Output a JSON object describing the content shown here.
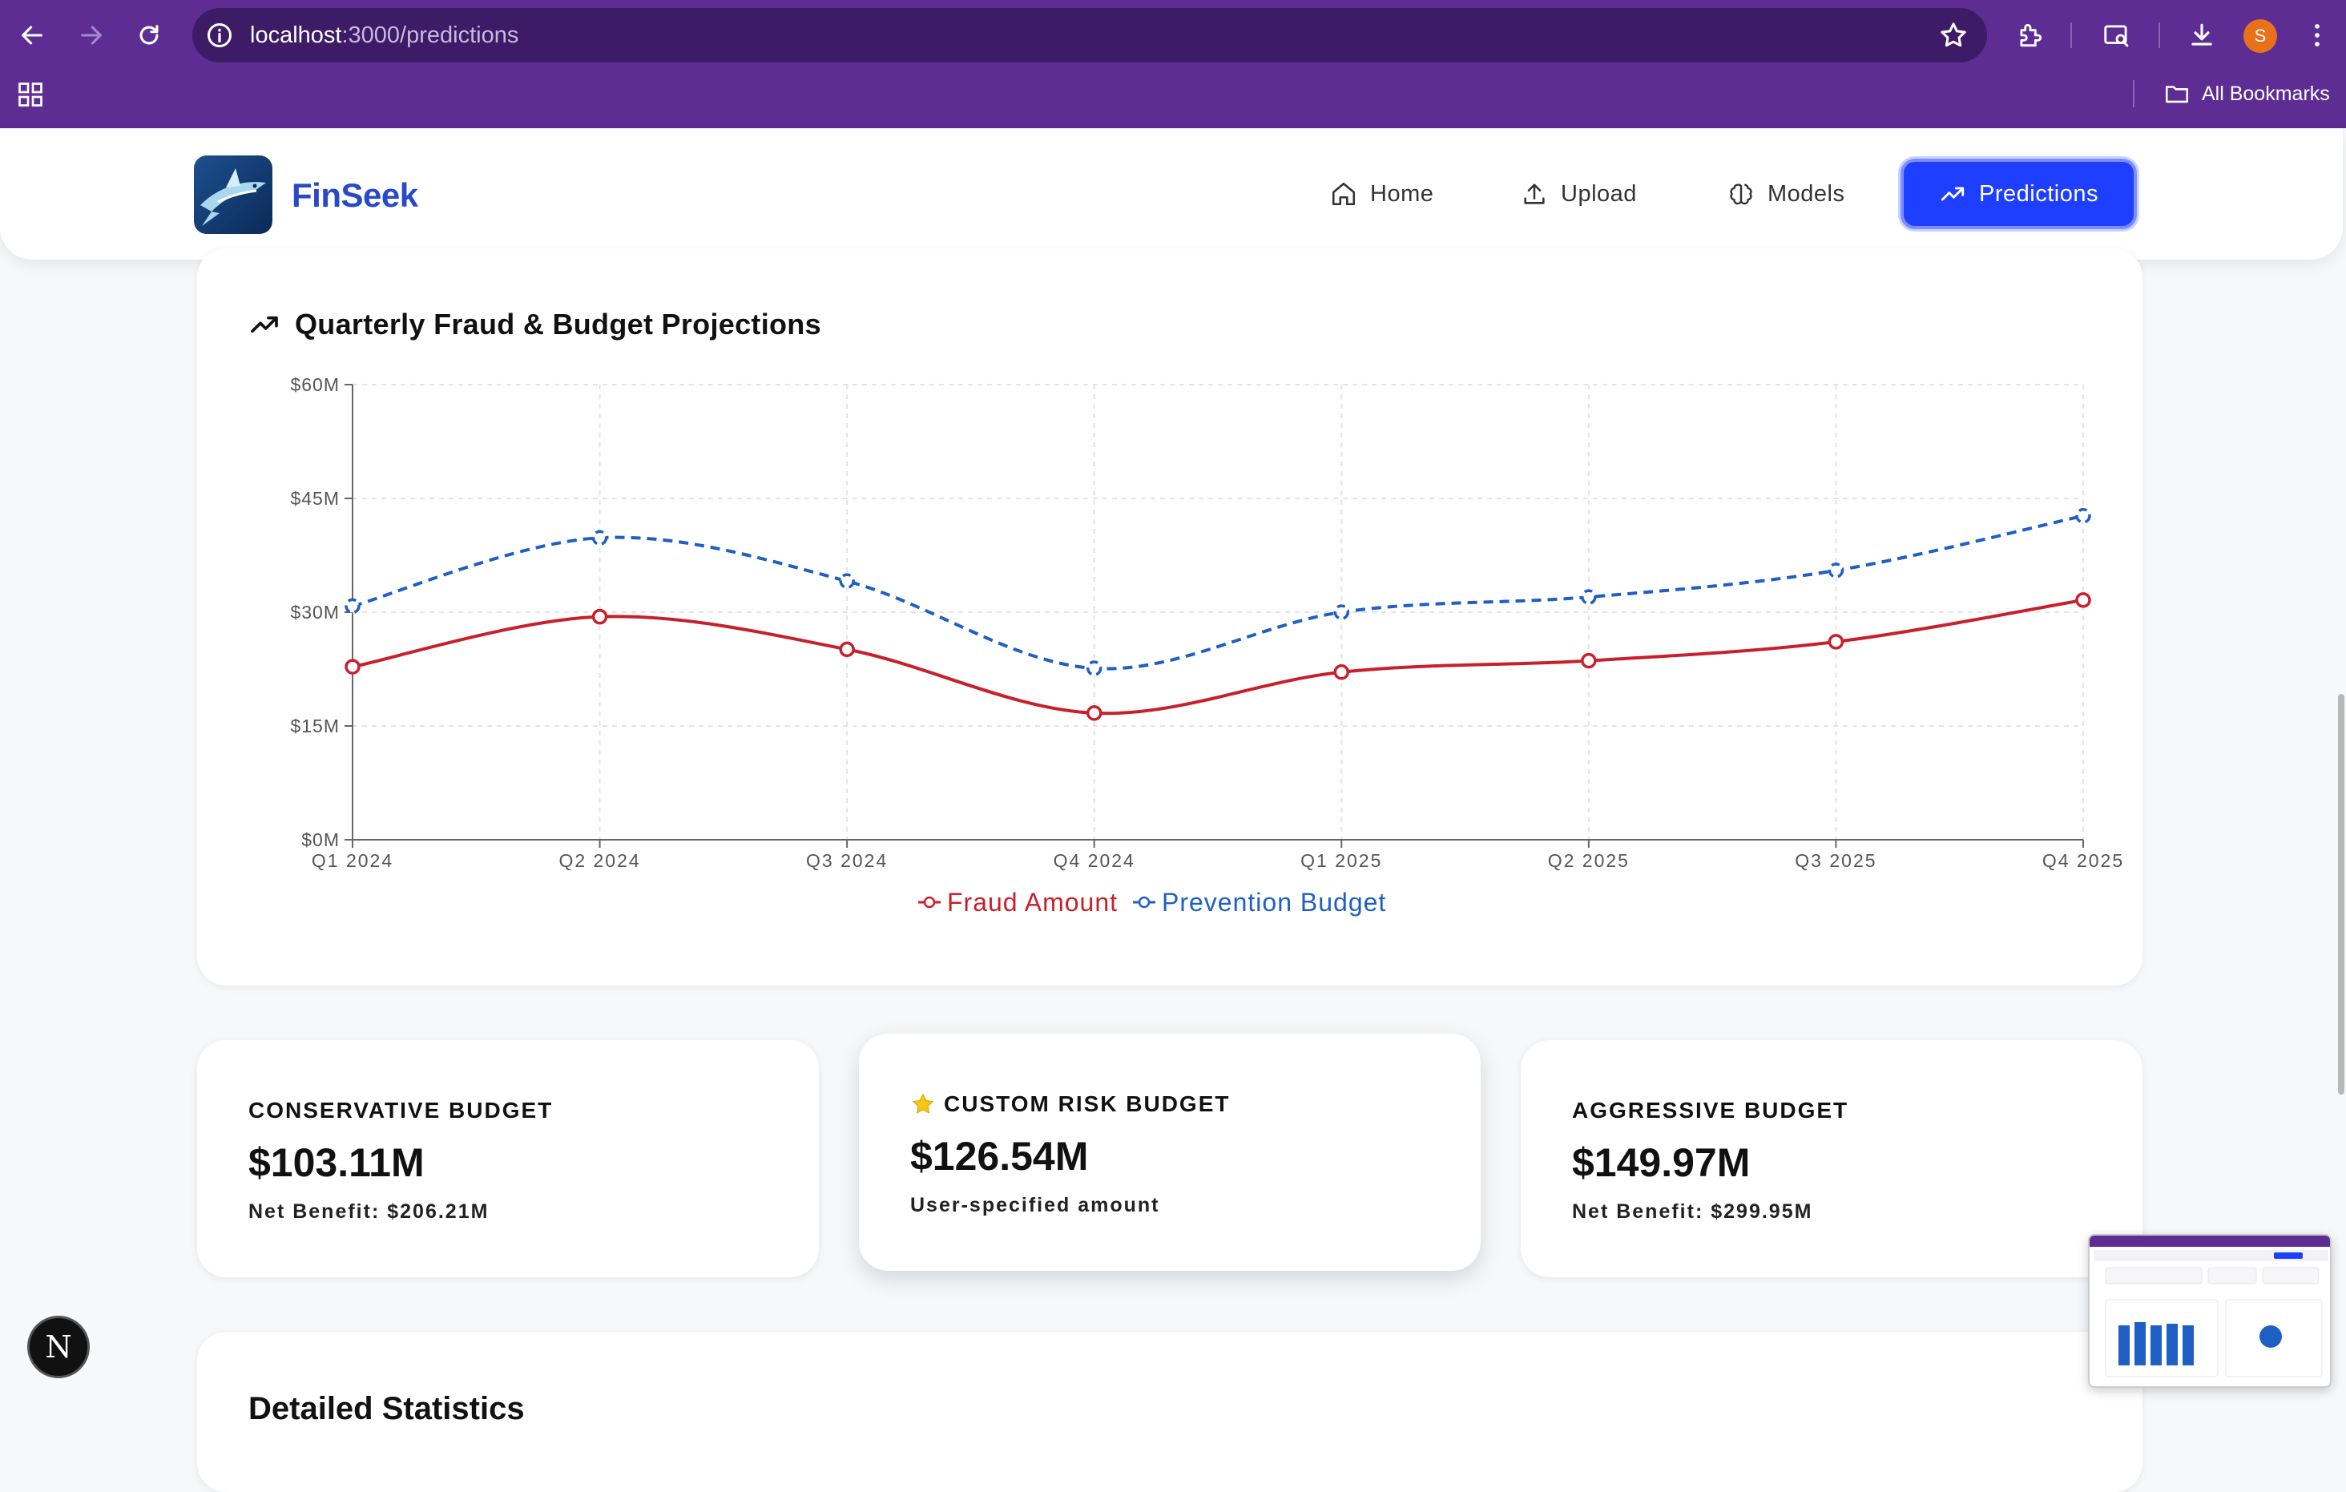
{
  "browser": {
    "url_host": "localhost",
    "url_path": ":3000/predictions",
    "profile_initial": "S",
    "bookmarks_label": "All Bookmarks"
  },
  "app": {
    "brand": "FinSeek",
    "nav": [
      {
        "label": "Home",
        "icon": "home-icon"
      },
      {
        "label": "Upload",
        "icon": "upload-icon"
      },
      {
        "label": "Models",
        "icon": "brain-icon"
      },
      {
        "label": "Predictions",
        "icon": "trending-up-icon",
        "active": true
      }
    ]
  },
  "chart_card": {
    "title": "Quarterly Fraud & Budget Projections"
  },
  "chart_data": {
    "type": "line",
    "title": "Quarterly Fraud & Budget Projections",
    "categories": [
      "Q1 2024",
      "Q2 2024",
      "Q3 2024",
      "Q4 2024",
      "Q1 2025",
      "Q2 2025",
      "Q3 2025",
      "Q4 2025"
    ],
    "y_ticks": [
      "$0M",
      "$15M",
      "$30M",
      "$45M",
      "$60M"
    ],
    "ylim": [
      0,
      60
    ],
    "y_unit": "$M",
    "grid": true,
    "legend_position": "bottom-center",
    "series": [
      {
        "name": "Fraud Amount",
        "color": "#c8202a",
        "style": "solid",
        "values": [
          22.8,
          29.4,
          25.1,
          16.7,
          22.1,
          23.6,
          26.1,
          31.6
        ]
      },
      {
        "name": "Prevention Budget",
        "color": "#1f5fc4",
        "style": "dashed",
        "values": [
          30.8,
          39.8,
          34.1,
          22.6,
          30.0,
          32.0,
          35.5,
          42.7
        ]
      }
    ]
  },
  "budgets": [
    {
      "label": "CONSERVATIVE BUDGET",
      "amount": "$103.11M",
      "sub": "Net Benefit: $206.21M",
      "starred": false
    },
    {
      "label": "CUSTOM RISK BUDGET",
      "amount": "$126.54M",
      "sub": "User-specified amount",
      "starred": true
    },
    {
      "label": "AGGRESSIVE BUDGET",
      "amount": "$149.97M",
      "sub": "Net Benefit: $299.95M",
      "starred": false
    }
  ],
  "stats_card": {
    "title": "Detailed Statistics"
  },
  "dev_badge": "N"
}
